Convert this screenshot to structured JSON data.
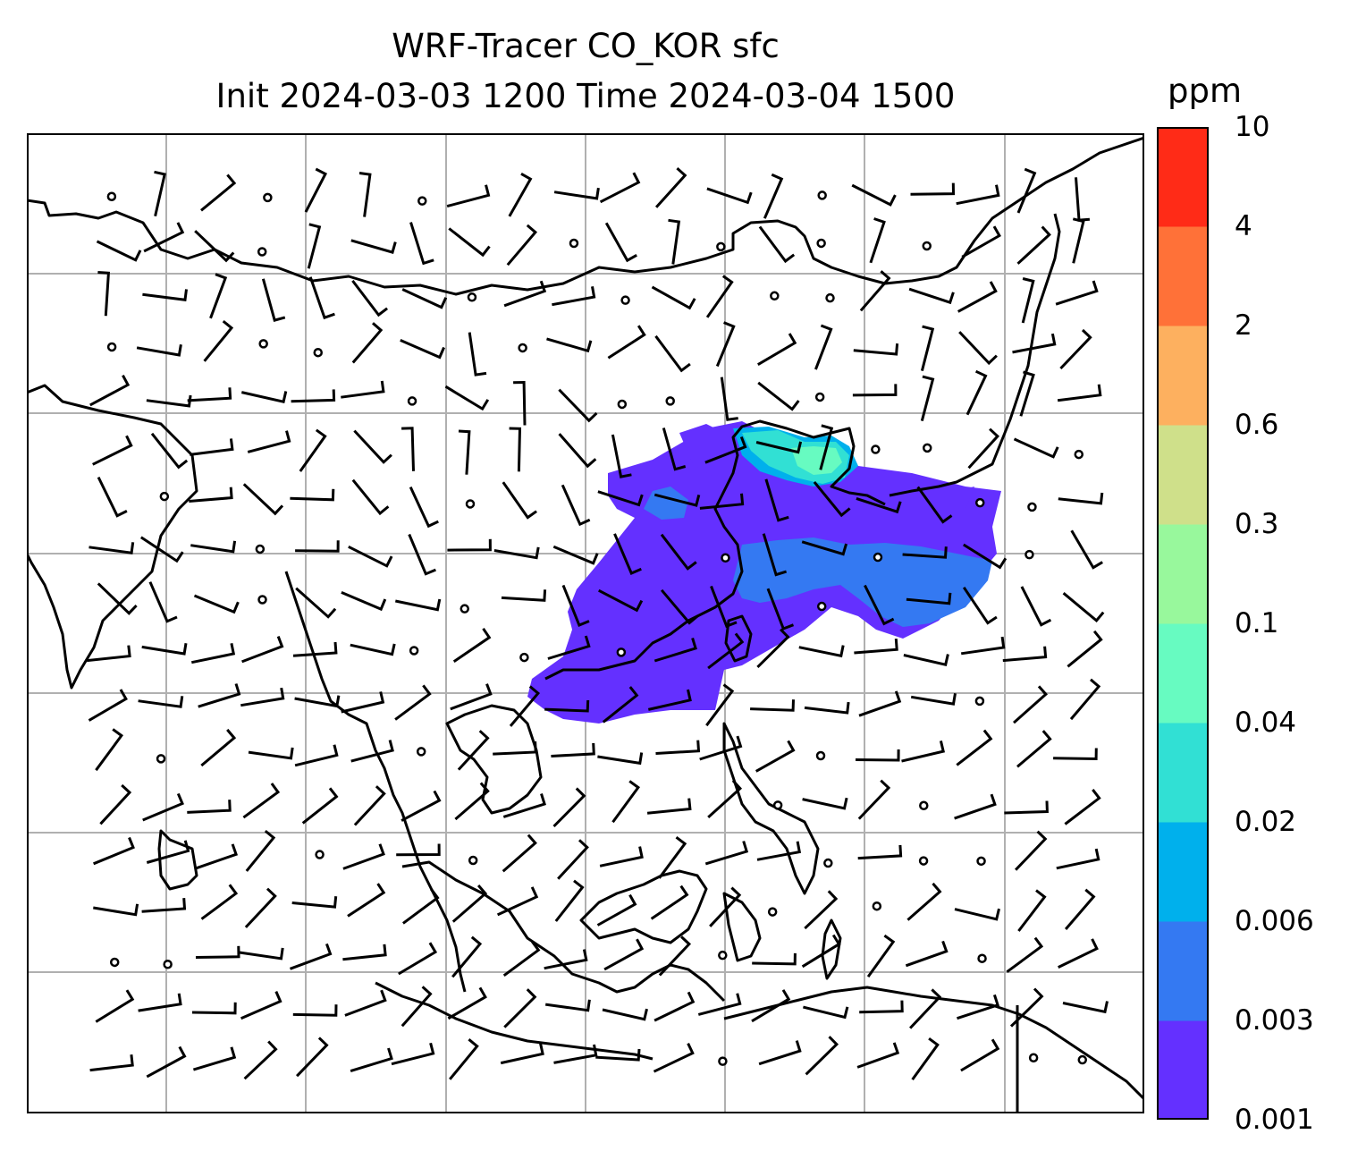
{
  "title_line1": "WRF-Tracer CO_KOR sfc",
  "title_line2": "Init 2024-03-03 1200 Time 2024-03-04 1500",
  "colorbar": {
    "unit": "ppm",
    "levels": [
      "0.001",
      "0.003",
      "0.006",
      "0.02",
      "0.04",
      "0.1",
      "0.3",
      "0.6",
      "2",
      "4",
      "10"
    ],
    "colors": [
      "#6430ff",
      "#3479f2",
      "#00b0ec",
      "#31e0d4",
      "#67fbc1",
      "#98f89c",
      "#cfe08a",
      "#fdb05f",
      "#ff7138",
      "#ff2b17"
    ]
  },
  "map": {
    "projection_grid": "lat/lon gridlines",
    "coastlines": true,
    "wind_barbs": true,
    "tracer": "CO_KOR",
    "level": "sfc",
    "plume_colors_shown": [
      "#6430ff",
      "#3479f2",
      "#00b0ec",
      "#31e0d4",
      "#67fbc1"
    ]
  }
}
